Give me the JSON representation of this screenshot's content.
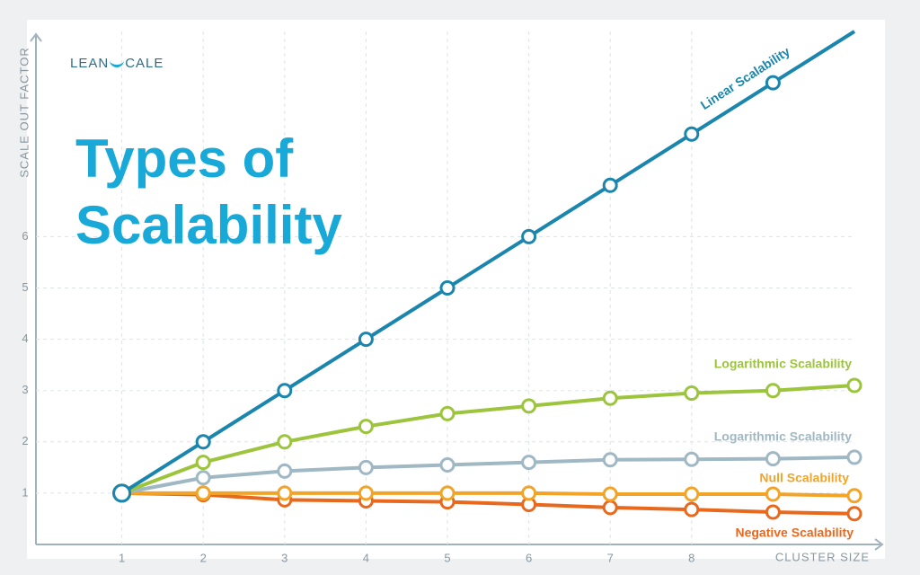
{
  "header": {
    "logo_left": "LEAN",
    "logo_right": "CALE"
  },
  "chart_data": {
    "type": "line",
    "title": "Types of Scalability",
    "y_label": "SCALE OUT FACTOR",
    "x_label": "CLUSTER SIZE",
    "x": [
      1,
      2,
      3,
      4,
      5,
      6,
      7,
      8,
      9,
      10
    ],
    "xlim": [
      0,
      10
    ],
    "ylim": [
      0,
      10
    ],
    "xticks": [
      1,
      2,
      3,
      4,
      5,
      6,
      7,
      8
    ],
    "yticks": [
      1,
      2,
      3,
      4,
      5,
      6
    ],
    "grid": true,
    "series": [
      {
        "name": "Linear Scalability",
        "color": "#1a86ad",
        "values": [
          1,
          2,
          3,
          4,
          5,
          6,
          7,
          8,
          9,
          10
        ]
      },
      {
        "name": "Logarithmic Scalability",
        "color": "#9cc43c",
        "values": [
          1,
          1.6,
          2,
          2.3,
          2.55,
          2.7,
          2.85,
          2.95,
          3.0,
          3.1
        ]
      },
      {
        "name": "Logarithmic Scalability",
        "color": "#9fb8c4",
        "values": [
          1,
          1.3,
          1.43,
          1.5,
          1.55,
          1.6,
          1.65,
          1.66,
          1.67,
          1.7
        ]
      },
      {
        "name": "Null Scalability",
        "color": "#f2a428",
        "values": [
          1,
          1,
          1,
          1,
          1,
          1,
          0.98,
          0.98,
          0.98,
          0.95
        ]
      },
      {
        "name": "Negative Scalability",
        "color": "#e8691e",
        "values": [
          1,
          0.97,
          0.87,
          0.85,
          0.83,
          0.78,
          0.72,
          0.68,
          0.63,
          0.6
        ]
      }
    ]
  }
}
